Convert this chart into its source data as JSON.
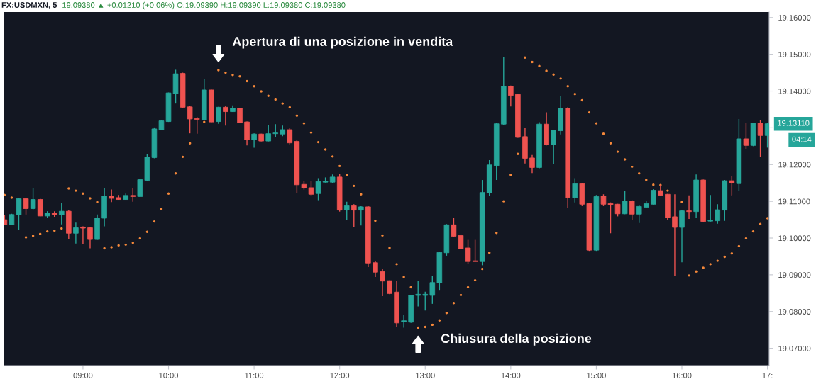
{
  "chart_data": {
    "type": "candlestick",
    "title": "FX:USDMXN, 5",
    "subtitle": "19.09380 ▲ +0.01210 (+0.06%) O:19.09390 H:19.09390 L:19.09380 C:19.09380",
    "x": [
      8.0833,
      8.1667,
      8.25,
      8.3333,
      8.4167,
      8.5,
      8.5833,
      8.6667,
      8.75,
      8.8333,
      8.9167,
      9,
      9.0833,
      9.1667,
      9.25,
      9.3333,
      9.4167,
      9.5,
      9.5833,
      9.6667,
      9.75,
      9.8333,
      9.9167,
      10,
      10.0833,
      10.1667,
      10.25,
      10.3333,
      10.4167,
      10.5,
      10.5833,
      10.6667,
      10.75,
      10.8333,
      10.9167,
      11,
      11.0833,
      11.1667,
      11.25,
      11.3333,
      11.4167,
      11.5,
      11.5833,
      11.6667,
      11.75,
      11.8333,
      11.9167,
      12,
      12.0833,
      12.1667,
      12.25,
      12.3333,
      12.4167,
      12.5,
      12.5833,
      12.6667,
      12.75,
      12.8333,
      12.9167,
      13,
      13.0833,
      13.1667,
      13.25,
      13.3333,
      13.4167,
      13.5,
      13.5833,
      13.6667,
      13.75,
      13.8333,
      13.9167,
      14,
      14.0833,
      14.1667,
      14.25,
      14.3333,
      14.4167,
      14.5,
      14.5833,
      14.6667,
      14.75,
      14.8333,
      14.9167,
      15,
      15.0833,
      15.1667,
      15.25,
      15.3333,
      15.4167,
      15.5,
      15.5833,
      15.6667,
      15.75,
      15.8333,
      15.9167,
      16,
      16.0833,
      16.1667,
      16.25,
      16.3333,
      16.4167,
      16.5,
      16.5833,
      16.6667,
      16.75,
      16.8333,
      16.9167,
      17
    ],
    "ohlc": [
      [
        19.105,
        19.1063,
        19.1035,
        19.1036
      ],
      [
        19.1036,
        19.1066,
        19.1035,
        19.1064
      ],
      [
        19.1063,
        19.1109,
        19.1023,
        19.1107
      ],
      [
        19.1107,
        19.111,
        19.1064,
        19.108
      ],
      [
        19.108,
        19.1136,
        19.1078,
        19.1105
      ],
      [
        19.1105,
        19.1107,
        19.1059,
        19.106
      ],
      [
        19.106,
        19.1073,
        19.1055,
        19.1068
      ],
      [
        19.1068,
        19.1073,
        19.1058,
        19.1063
      ],
      [
        19.1063,
        19.1096,
        19.1037,
        19.1073
      ],
      [
        19.1073,
        19.1077,
        19.0996,
        19.1013
      ],
      [
        19.1013,
        19.1042,
        19.0985,
        19.1028
      ],
      [
        19.103,
        19.1032,
        19.0983,
        19.1027
      ],
      [
        19.1028,
        19.103,
        19.0972,
        19.0996
      ],
      [
        19.0996,
        19.1064,
        19.0995,
        19.1055
      ],
      [
        19.1054,
        19.1136,
        19.1032,
        19.1114
      ],
      [
        19.1114,
        19.1132,
        19.1098,
        19.1108
      ],
      [
        19.111,
        19.1117,
        19.1104,
        19.1105
      ],
      [
        19.1105,
        19.1121,
        19.1104,
        19.1116
      ],
      [
        19.1116,
        19.1136,
        19.1099,
        19.1113
      ],
      [
        19.1113,
        19.116,
        19.1112,
        19.1159
      ],
      [
        19.1157,
        19.1228,
        19.1156,
        19.122
      ],
      [
        19.1219,
        19.1301,
        19.1217,
        19.1297
      ],
      [
        19.1295,
        19.1321,
        19.1294,
        19.1319
      ],
      [
        19.1317,
        19.1396,
        19.1316,
        19.1395
      ],
      [
        19.1393,
        19.1458,
        19.1366,
        19.1447
      ],
      [
        19.1448,
        19.145,
        19.1355,
        19.1356
      ],
      [
        19.1357,
        19.1359,
        19.1285,
        19.1324
      ],
      [
        19.1325,
        19.1329,
        19.1284,
        19.1323
      ],
      [
        19.1321,
        19.1432,
        19.132,
        19.1403
      ],
      [
        19.1403,
        19.1404,
        19.1315,
        19.1316
      ],
      [
        19.1317,
        19.1357,
        19.1311,
        19.1356
      ],
      [
        19.1356,
        19.136,
        19.1306,
        19.1344
      ],
      [
        19.1344,
        19.1361,
        19.1343,
        19.1353
      ],
      [
        19.1353,
        19.1354,
        19.1313,
        19.1314
      ],
      [
        19.1316,
        19.1317,
        19.1252,
        19.1268
      ],
      [
        19.1268,
        19.1285,
        19.1246,
        19.1283
      ],
      [
        19.1283,
        19.1284,
        19.1263,
        19.1264
      ],
      [
        19.1264,
        19.1308,
        19.1263,
        19.1284
      ],
      [
        19.1284,
        19.131,
        19.1274,
        19.1286
      ],
      [
        19.1283,
        19.1306,
        19.1277,
        19.1295
      ],
      [
        19.1295,
        19.13,
        19.1255,
        19.1259
      ],
      [
        19.1263,
        19.1266,
        19.1123,
        19.1145
      ],
      [
        19.1146,
        19.1155,
        19.1132,
        19.1136
      ],
      [
        19.1137,
        19.1156,
        19.1116,
        19.1119
      ],
      [
        19.1121,
        19.1163,
        19.1103,
        19.1154
      ],
      [
        19.1152,
        19.1165,
        19.1151,
        19.1155
      ],
      [
        19.1152,
        19.1173,
        19.115,
        19.1166
      ],
      [
        19.1166,
        19.1175,
        19.1072,
        19.1076
      ],
      [
        19.1077,
        19.1099,
        19.1048,
        19.1088
      ],
      [
        19.1088,
        19.1092,
        19.1031,
        19.1076
      ],
      [
        19.1076,
        19.1087,
        19.1034,
        19.1085
      ],
      [
        19.1085,
        19.1087,
        19.0921,
        19.0932
      ],
      [
        19.0933,
        19.0938,
        19.0894,
        19.0907
      ],
      [
        19.0909,
        19.0916,
        19.0842,
        19.0883
      ],
      [
        19.0884,
        19.0885,
        19.0847,
        19.0849
      ],
      [
        19.0853,
        19.0884,
        19.0758,
        19.0769
      ],
      [
        19.0772,
        19.0791,
        19.0756,
        19.0775
      ],
      [
        19.0771,
        19.0845,
        19.0769,
        19.0844
      ],
      [
        19.0844,
        19.0883,
        19.0814,
        19.0847
      ],
      [
        19.0844,
        19.0854,
        19.0803,
        19.0847
      ],
      [
        19.0844,
        19.0897,
        19.0821,
        19.0879
      ],
      [
        19.0878,
        19.0963,
        19.0857,
        19.0961
      ],
      [
        19.096,
        19.1038,
        19.0952,
        19.1036
      ],
      [
        19.1036,
        19.1055,
        19.1004,
        19.1005
      ],
      [
        19.1007,
        19.101,
        19.097,
        19.0971
      ],
      [
        19.0973,
        19.0995,
        19.0929,
        19.0936
      ],
      [
        19.0938,
        19.0995,
        19.0936,
        19.0936
      ],
      [
        19.0936,
        19.1158,
        19.0926,
        19.1124
      ],
      [
        19.1123,
        19.1212,
        19.1115,
        19.1199
      ],
      [
        19.1197,
        19.1313,
        19.1158,
        19.1311
      ],
      [
        19.131,
        19.1493,
        19.1308,
        19.1413
      ],
      [
        19.1413,
        19.1415,
        19.1358,
        19.1388
      ],
      [
        19.1391,
        19.1392,
        19.1273,
        19.1274
      ],
      [
        19.1276,
        19.1301,
        19.1203,
        19.1217
      ],
      [
        19.1218,
        19.1226,
        19.1177,
        19.1192
      ],
      [
        19.1192,
        19.1315,
        19.119,
        19.131
      ],
      [
        19.131,
        19.1342,
        19.1252,
        19.1254
      ],
      [
        19.1254,
        19.1295,
        19.1201,
        19.1293
      ],
      [
        19.1292,
        19.1386,
        19.1282,
        19.1353
      ],
      [
        19.1353,
        19.1356,
        19.1081,
        19.111
      ],
      [
        19.111,
        19.1163,
        19.1097,
        19.1148
      ],
      [
        19.1148,
        19.115,
        19.1087,
        19.1092
      ],
      [
        19.1094,
        19.1095,
        19.0965,
        19.0967
      ],
      [
        19.0967,
        19.1117,
        19.0965,
        19.1113
      ],
      [
        19.1114,
        19.1119,
        19.1087,
        19.1092
      ],
      [
        19.1094,
        19.1097,
        19.1013,
        19.109
      ],
      [
        19.1092,
        19.1093,
        19.1059,
        19.1066
      ],
      [
        19.1066,
        19.1129,
        19.1065,
        19.1101
      ],
      [
        19.1101,
        19.1103,
        19.105,
        19.1065
      ],
      [
        19.1065,
        19.1089,
        19.1041,
        19.1086
      ],
      [
        19.1084,
        19.1102,
        19.1082,
        19.1094
      ],
      [
        19.1092,
        19.1133,
        19.1091,
        19.113
      ],
      [
        19.1129,
        19.1145,
        19.1115,
        19.1116
      ],
      [
        19.1119,
        19.112,
        19.1048,
        19.1055
      ],
      [
        19.1058,
        19.1119,
        19.0897,
        19.1029
      ],
      [
        19.1029,
        19.1076,
        19.0934,
        19.1074
      ],
      [
        19.1074,
        19.1116,
        19.1052,
        19.1072
      ],
      [
        19.1072,
        19.1173,
        19.1055,
        19.1158
      ],
      [
        19.1158,
        19.1159,
        19.1044,
        19.1045
      ],
      [
        19.1046,
        19.1117,
        19.1045,
        19.1048
      ],
      [
        19.1047,
        19.1092,
        19.1039,
        19.1077
      ],
      [
        19.1076,
        19.1158,
        19.1047,
        19.1156
      ],
      [
        19.1156,
        19.1169,
        19.1116,
        19.115
      ],
      [
        19.1148,
        19.1324,
        19.1128,
        19.127
      ],
      [
        19.127,
        19.1313,
        19.1242,
        19.1252
      ],
      [
        19.1252,
        19.1314,
        19.125,
        19.1313
      ],
      [
        19.1313,
        19.1321,
        19.1221,
        19.1279
      ],
      [
        19.1279,
        19.1314,
        19.1246,
        19.1311
      ]
    ],
    "colors": [
      "#ef5350",
      "#26a69a",
      "#26a69a",
      "#ef5350",
      "#26a69a",
      "#ef5350",
      "#26a69a",
      "#ef5350",
      "#26a69a",
      "#ef5350",
      "#26a69a",
      "#ef5350",
      "#ef5350",
      "#26a69a",
      "#26a69a",
      "#ef5350",
      "#ef5350",
      "#26a69a",
      "#ef5350",
      "#26a69a",
      "#26a69a",
      "#26a69a",
      "#26a69a",
      "#26a69a",
      "#26a69a",
      "#ef5350",
      "#ef5350",
      "#ef5350",
      "#26a69a",
      "#ef5350",
      "#26a69a",
      "#ef5350",
      "#26a69a",
      "#ef5350",
      "#ef5350",
      "#26a69a",
      "#ef5350",
      "#26a69a",
      "#26a69a",
      "#26a69a",
      "#ef5350",
      "#ef5350",
      "#ef5350",
      "#ef5350",
      "#26a69a",
      "#26a69a",
      "#26a69a",
      "#ef5350",
      "#26a69a",
      "#ef5350",
      "#26a69a",
      "#ef5350",
      "#ef5350",
      "#ef5350",
      "#ef5350",
      "#ef5350",
      "#26a69a",
      "#26a69a",
      "#26a69a",
      "#26a69a",
      "#26a69a",
      "#26a69a",
      "#26a69a",
      "#ef5350",
      "#ef5350",
      "#ef5350",
      "#ef5350",
      "#26a69a",
      "#26a69a",
      "#26a69a",
      "#26a69a",
      "#ef5350",
      "#ef5350",
      "#ef5350",
      "#ef5350",
      "#26a69a",
      "#ef5350",
      "#26a69a",
      "#26a69a",
      "#ef5350",
      "#26a69a",
      "#ef5350",
      "#ef5350",
      "#26a69a",
      "#ef5350",
      "#ef5350",
      "#ef5350",
      "#26a69a",
      "#ef5350",
      "#26a69a",
      "#26a69a",
      "#26a69a",
      "#ef5350",
      "#ef5350",
      "#ef5350",
      "#26a69a",
      "#ef5350",
      "#26a69a",
      "#ef5350",
      "#26a69a",
      "#26a69a",
      "#26a69a",
      "#ef5350",
      "#26a69a",
      "#ef5350",
      "#26a69a",
      "#ef5350",
      "#26a69a"
    ],
    "series": [
      {
        "type": "scatter",
        "color": "#f5883a",
        "values": [
          19.1117,
          19.111,
          null,
          19.1002,
          19.1006,
          19.1011,
          19.1018,
          19.102,
          19.1026,
          19.1135,
          19.1129,
          19.1121,
          19.1108,
          19.1098,
          19.0972,
          19.0975,
          19.098,
          19.0982,
          19.0987,
          19.0999,
          19.1017,
          19.1045,
          19.1079,
          19.1121,
          19.1176,
          19.1221,
          19.1258,
          null,
          19.1316,
          null,
          19.1457,
          19.145,
          19.1444,
          19.144,
          19.1427,
          19.1413,
          19.1399,
          19.1387,
          19.1377,
          19.1366,
          19.1356,
          19.1333,
          19.1312,
          19.1287,
          19.1261,
          19.1241,
          19.1222,
          19.1196,
          19.1171,
          19.1142,
          19.1119,
          null,
          19.1047,
          19.1007,
          19.0973,
          19.0929,
          19.0894,
          19.0866,
          19.0756,
          19.0758,
          19.0764,
          19.0776,
          19.0796,
          19.0823,
          19.0845,
          19.0866,
          19.0885,
          19.0916,
          19.096,
          19.1014,
          19.11,
          19.1172,
          19.1229,
          19.1491,
          19.1479,
          19.1468,
          19.1455,
          19.1445,
          19.1434,
          19.1413,
          19.1392,
          19.1375,
          19.1342,
          19.1312,
          19.1284,
          19.1258,
          19.1235,
          19.1214,
          19.1194,
          19.1176,
          19.1158,
          19.1145,
          19.1144,
          19.1129,
          null,
          19.1098,
          19.0898,
          19.0909,
          19.0919,
          19.0929,
          19.0938,
          19.0949,
          19.0958,
          19.0978,
          19.0999,
          19.1018,
          19.1038,
          19.1054
        ]
      }
    ],
    "marker": "circle",
    "xlim": [
      8.08,
      17.02
    ],
    "ylim": [
      19.0653,
      19.1615
    ],
    "xticks": [
      {
        "value": 9,
        "label": "09:00"
      },
      {
        "value": 10,
        "label": "10:00"
      },
      {
        "value": 11,
        "label": "11:00"
      },
      {
        "value": 12,
        "label": "12:00"
      },
      {
        "value": 13,
        "label": "13:00"
      },
      {
        "value": 14,
        "label": "14:00"
      },
      {
        "value": 15,
        "label": "15:00"
      },
      {
        "value": 16,
        "label": "16:00"
      },
      {
        "value": 17,
        "label": "17:"
      }
    ],
    "yticks": [
      {
        "value": 19.07,
        "label": "19.07000"
      },
      {
        "value": 19.08,
        "label": "19.08000"
      },
      {
        "value": 19.09,
        "label": "19.09000"
      },
      {
        "value": 19.1,
        "label": "19.10000"
      },
      {
        "value": 19.11,
        "label": "19.11000"
      },
      {
        "value": 19.12,
        "label": "19.12000"
      },
      {
        "value": 19.13,
        "label": null
      },
      {
        "value": 19.14,
        "label": "19.14000"
      },
      {
        "value": 19.15,
        "label": "19.15000"
      },
      {
        "value": 19.16,
        "label": "19.16000"
      }
    ],
    "annotations": [
      {
        "text": "Apertura di una posizione in vendita",
        "x": 10.5833,
        "y": 19.1457
      },
      {
        "text": "Chiusura della posizione",
        "x": 12.9167,
        "y": 19.0756
      },
      {
        "text": "19.13110",
        "x": 17,
        "y": 19.1311
      },
      "04:14"
    ]
  }
}
